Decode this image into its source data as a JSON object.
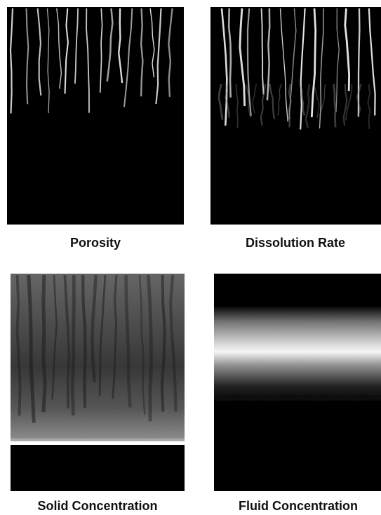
{
  "panels": [
    {
      "caption": "Porosity"
    },
    {
      "caption": "Dissolution Rate"
    },
    {
      "caption": "Solid Concentration"
    },
    {
      "caption": "Fluid Concentration"
    }
  ]
}
